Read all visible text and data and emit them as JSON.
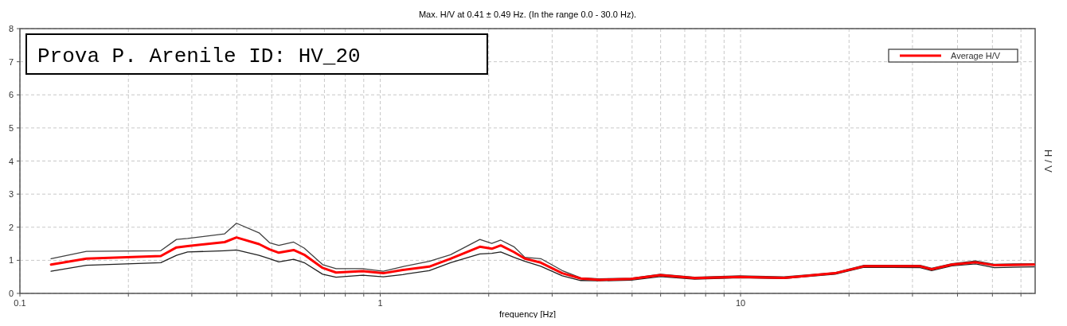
{
  "chart_data": {
    "type": "line",
    "title": "Max. H/V at 0.41 ± 0.49 Hz. (In the range 0.0 - 30.0 Hz).",
    "xlabel": "frequency [Hz]",
    "ylabel": "H / V",
    "annotations": [
      "Prova P. Arenile ID: HV_20"
    ],
    "log": "x",
    "grid": true,
    "legend": "top right",
    "line_style": "solid",
    "xlim": [
      0.1,
      65.7
    ],
    "ylim": [
      0,
      8
    ],
    "xticks": [
      0.1,
      {
        "value": 0.2,
        "label": null
      },
      {
        "value": 0.3,
        "label": null
      },
      {
        "value": 0.4,
        "label": null
      },
      {
        "value": 0.5,
        "label": null
      },
      {
        "value": 0.6,
        "label": null
      },
      {
        "value": 0.7,
        "label": null
      },
      {
        "value": 0.8,
        "label": null
      },
      {
        "value": 0.9,
        "label": null
      },
      1,
      {
        "value": 2,
        "label": null
      },
      {
        "value": 3,
        "label": null
      },
      {
        "value": 4,
        "label": null
      },
      {
        "value": 5,
        "label": null
      },
      {
        "value": 6,
        "label": null
      },
      {
        "value": 7,
        "label": null
      },
      {
        "value": 8,
        "label": null
      },
      {
        "value": 9,
        "label": null
      },
      10,
      {
        "value": 20,
        "label": null
      },
      {
        "value": 30,
        "label": null
      },
      {
        "value": 40,
        "label": null
      },
      {
        "value": 50,
        "label": null
      },
      {
        "value": 60,
        "label": null
      }
    ],
    "yticks": [
      0,
      1,
      2,
      3,
      4,
      5,
      6,
      7,
      8
    ],
    "x": [
      0.122,
      0.153,
      0.246,
      0.272,
      0.292,
      0.37,
      0.399,
      0.461,
      0.493,
      0.523,
      0.575,
      0.615,
      0.692,
      0.754,
      0.893,
      1.02,
      1.155,
      1.368,
      1.567,
      1.89,
      2.04,
      2.16,
      2.35,
      2.52,
      2.79,
      3.2,
      3.6,
      4.06,
      4.97,
      5.99,
      7.46,
      9.94,
      13.2,
      18.3,
      22.0,
      31.5,
      33.9,
      38.6,
      44.9,
      50.6,
      65.3
    ],
    "series": [
      {
        "color": "#404040",
        "values": [
          1.05,
          1.27,
          1.29,
          1.63,
          1.66,
          1.8,
          2.12,
          1.83,
          1.53,
          1.45,
          1.55,
          1.37,
          0.87,
          0.75,
          0.75,
          0.67,
          0.81,
          0.97,
          1.17,
          1.63,
          1.51,
          1.61,
          1.41,
          1.09,
          1.05,
          0.69,
          0.47,
          0.44,
          0.46,
          0.58,
          0.49,
          0.53,
          0.5,
          0.63,
          0.85,
          0.85,
          0.76,
          0.9,
          0.98,
          0.88,
          0.9
        ]
      },
      {
        "color": "#202020",
        "values": [
          0.67,
          0.85,
          0.93,
          1.15,
          1.25,
          1.29,
          1.31,
          1.15,
          1.05,
          0.95,
          1.03,
          0.93,
          0.58,
          0.49,
          0.55,
          0.5,
          0.57,
          0.69,
          0.93,
          1.19,
          1.21,
          1.25,
          1.09,
          0.97,
          0.82,
          0.53,
          0.39,
          0.38,
          0.4,
          0.51,
          0.43,
          0.47,
          0.45,
          0.58,
          0.79,
          0.78,
          0.69,
          0.83,
          0.89,
          0.78,
          0.8
        ]
      },
      {
        "name": "Average H/V",
        "color": "#ff0000",
        "values": [
          0.87,
          1.05,
          1.13,
          1.39,
          1.43,
          1.55,
          1.69,
          1.49,
          1.33,
          1.23,
          1.31,
          1.17,
          0.77,
          0.63,
          0.67,
          0.61,
          0.71,
          0.81,
          1.05,
          1.41,
          1.35,
          1.45,
          1.25,
          1.05,
          0.93,
          0.61,
          0.45,
          0.41,
          0.44,
          0.55,
          0.46,
          0.5,
          0.47,
          0.61,
          0.82,
          0.82,
          0.73,
          0.87,
          0.94,
          0.85,
          0.87
        ]
      }
    ]
  }
}
